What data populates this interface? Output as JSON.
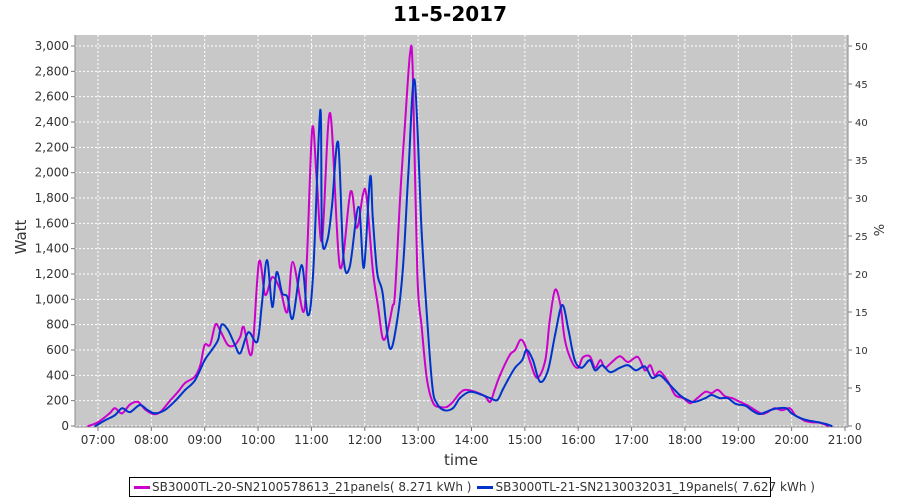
{
  "chart_data": {
    "type": "line",
    "title": "11-5-2017",
    "xlabel": "time",
    "ylabel": "Watt",
    "y2label": "%",
    "ylim": [
      0,
      3000
    ],
    "y2lim": [
      0,
      50
    ],
    "yticks": [
      "0",
      "200",
      "400",
      "600",
      "800",
      "1,000",
      "1,200",
      "1,400",
      "1,600",
      "1,800",
      "2,000",
      "2,200",
      "2,400",
      "2,600",
      "2,800",
      "3,000"
    ],
    "y2ticks": [
      "0",
      "5",
      "10",
      "15",
      "20",
      "25",
      "30",
      "35",
      "40",
      "45",
      "50"
    ],
    "xticks": [
      "07:00",
      "08:00",
      "09:00",
      "10:00",
      "11:00",
      "12:00",
      "13:00",
      "14:00",
      "15:00",
      "16:00",
      "17:00",
      "18:00",
      "19:00",
      "20:00",
      "21:00"
    ],
    "grid": true,
    "legend_position": "bottom",
    "background": "#c8c8c8",
    "series": [
      {
        "name": "SB3000TL-20-SN2100578613_21panels( 8.271 kWh )",
        "color": "#cc00cc",
        "points": [
          [
            "06:49",
            0
          ],
          [
            "07:00",
            30
          ],
          [
            "07:13",
            100
          ],
          [
            "07:19",
            140
          ],
          [
            "07:27",
            100
          ],
          [
            "07:36",
            170
          ],
          [
            "07:45",
            190
          ],
          [
            "07:53",
            130
          ],
          [
            "08:02",
            95
          ],
          [
            "08:10",
            110
          ],
          [
            "08:21",
            200
          ],
          [
            "08:30",
            270
          ],
          [
            "08:38",
            340
          ],
          [
            "08:49",
            390
          ],
          [
            "08:55",
            480
          ],
          [
            "09:00",
            640
          ],
          [
            "09:06",
            640
          ],
          [
            "09:12",
            800
          ],
          [
            "09:17",
            760
          ],
          [
            "09:26",
            640
          ],
          [
            "09:34",
            640
          ],
          [
            "09:40",
            705
          ],
          [
            "09:44",
            780
          ],
          [
            "09:53",
            575
          ],
          [
            "10:01",
            1295
          ],
          [
            "10:08",
            1035
          ],
          [
            "10:16",
            1175
          ],
          [
            "10:25",
            1075
          ],
          [
            "10:33",
            900
          ],
          [
            "10:39",
            1295
          ],
          [
            "10:51",
            900
          ],
          [
            "10:55",
            1335
          ],
          [
            "11:01",
            2350
          ],
          [
            "11:06",
            1940
          ],
          [
            "11:12",
            1470
          ],
          [
            "11:21",
            2470
          ],
          [
            "11:32",
            1255
          ],
          [
            "11:44",
            1850
          ],
          [
            "11:51",
            1565
          ],
          [
            "11:58",
            1830
          ],
          [
            "12:02",
            1810
          ],
          [
            "12:09",
            1230
          ],
          [
            "12:15",
            940
          ],
          [
            "12:20",
            695
          ],
          [
            "12:25",
            730
          ],
          [
            "12:31",
            940
          ],
          [
            "12:34",
            1050
          ],
          [
            "12:40",
            1840
          ],
          [
            "12:45",
            2360
          ],
          [
            "12:51",
            2945
          ],
          [
            "12:54",
            2785
          ],
          [
            "12:59",
            1210
          ],
          [
            "13:04",
            780
          ],
          [
            "13:10",
            365
          ],
          [
            "13:17",
            180
          ],
          [
            "13:25",
            150
          ],
          [
            "13:32",
            150
          ],
          [
            "13:39",
            190
          ],
          [
            "13:47",
            260
          ],
          [
            "13:53",
            285
          ],
          [
            "14:04",
            270
          ],
          [
            "14:15",
            235
          ],
          [
            "14:21",
            190
          ],
          [
            "14:26",
            285
          ],
          [
            "14:32",
            400
          ],
          [
            "14:43",
            560
          ],
          [
            "14:49",
            600
          ],
          [
            "14:55",
            680
          ],
          [
            "15:00",
            640
          ],
          [
            "15:06",
            505
          ],
          [
            "15:14",
            380
          ],
          [
            "15:23",
            520
          ],
          [
            "15:28",
            835
          ],
          [
            "15:34",
            1075
          ],
          [
            "15:40",
            955
          ],
          [
            "15:45",
            680
          ],
          [
            "15:53",
            505
          ],
          [
            "16:00",
            460
          ],
          [
            "16:05",
            540
          ],
          [
            "16:13",
            550
          ],
          [
            "16:19",
            460
          ],
          [
            "16:25",
            520
          ],
          [
            "16:30",
            460
          ],
          [
            "16:38",
            505
          ],
          [
            "16:47",
            550
          ],
          [
            "16:56",
            505
          ],
          [
            "17:07",
            545
          ],
          [
            "17:15",
            440
          ],
          [
            "17:21",
            480
          ],
          [
            "17:26",
            400
          ],
          [
            "17:32",
            430
          ],
          [
            "17:41",
            350
          ],
          [
            "17:49",
            245
          ],
          [
            "17:58",
            220
          ],
          [
            "18:06",
            180
          ],
          [
            "18:14",
            220
          ],
          [
            "18:23",
            270
          ],
          [
            "18:30",
            260
          ],
          [
            "18:37",
            285
          ],
          [
            "18:45",
            235
          ],
          [
            "18:53",
            220
          ],
          [
            "19:02",
            190
          ],
          [
            "19:11",
            160
          ],
          [
            "19:19",
            125
          ],
          [
            "19:27",
            95
          ],
          [
            "19:33",
            110
          ],
          [
            "19:41",
            140
          ],
          [
            "19:49",
            125
          ],
          [
            "19:58",
            140
          ],
          [
            "20:04",
            85
          ],
          [
            "20:09",
            65
          ],
          [
            "20:15",
            40
          ],
          [
            "20:23",
            30
          ],
          [
            "20:32",
            25
          ],
          [
            "20:41",
            0
          ]
        ]
      },
      {
        "name": "SB3000TL-21-SN2130032031_19panels( 7.627 kWh )",
        "color": "#0033cc",
        "points": [
          [
            "06:57",
            0
          ],
          [
            "07:08",
            45
          ],
          [
            "07:19",
            85
          ],
          [
            "07:27",
            140
          ],
          [
            "07:36",
            110
          ],
          [
            "07:47",
            165
          ],
          [
            "07:56",
            125
          ],
          [
            "08:04",
            100
          ],
          [
            "08:15",
            125
          ],
          [
            "08:27",
            200
          ],
          [
            "08:38",
            285
          ],
          [
            "08:49",
            360
          ],
          [
            "09:00",
            520
          ],
          [
            "09:08",
            600
          ],
          [
            "09:15",
            680
          ],
          [
            "09:19",
            800
          ],
          [
            "09:26",
            760
          ],
          [
            "09:34",
            640
          ],
          [
            "09:40",
            575
          ],
          [
            "09:49",
            740
          ],
          [
            "09:59",
            665
          ],
          [
            "10:04",
            940
          ],
          [
            "10:10",
            1310
          ],
          [
            "10:16",
            940
          ],
          [
            "10:21",
            1215
          ],
          [
            "10:27",
            1050
          ],
          [
            "10:33",
            1020
          ],
          [
            "10:39",
            850
          ],
          [
            "10:49",
            1270
          ],
          [
            "10:56",
            875
          ],
          [
            "11:02",
            1210
          ],
          [
            "11:10",
            2495
          ],
          [
            "11:12",
            1490
          ],
          [
            "11:18",
            1470
          ],
          [
            "11:23",
            1730
          ],
          [
            "11:30",
            2240
          ],
          [
            "11:36",
            1335
          ],
          [
            "11:43",
            1255
          ],
          [
            "11:53",
            1730
          ],
          [
            "11:59",
            1250
          ],
          [
            "12:06",
            1965
          ],
          [
            "12:09",
            1640
          ],
          [
            "12:14",
            1210
          ],
          [
            "12:20",
            1050
          ],
          [
            "12:28",
            615
          ],
          [
            "12:36",
            815
          ],
          [
            "12:43",
            1255
          ],
          [
            "12:49",
            2000
          ],
          [
            "12:56",
            2730
          ],
          [
            "13:04",
            1525
          ],
          [
            "13:10",
            860
          ],
          [
            "13:16",
            310
          ],
          [
            "13:21",
            180
          ],
          [
            "13:29",
            125
          ],
          [
            "13:39",
            140
          ],
          [
            "13:47",
            220
          ],
          [
            "13:58",
            270
          ],
          [
            "14:10",
            250
          ],
          [
            "14:21",
            220
          ],
          [
            "14:29",
            205
          ],
          [
            "14:35",
            285
          ],
          [
            "14:41",
            365
          ],
          [
            "14:49",
            460
          ],
          [
            "14:57",
            520
          ],
          [
            "15:02",
            600
          ],
          [
            "15:09",
            520
          ],
          [
            "15:17",
            350
          ],
          [
            "15:26",
            440
          ],
          [
            "15:34",
            720
          ],
          [
            "15:42",
            955
          ],
          [
            "15:49",
            760
          ],
          [
            "15:56",
            520
          ],
          [
            "16:04",
            460
          ],
          [
            "16:13",
            520
          ],
          [
            "16:19",
            440
          ],
          [
            "16:27",
            480
          ],
          [
            "16:36",
            425
          ],
          [
            "16:47",
            460
          ],
          [
            "16:56",
            480
          ],
          [
            "17:05",
            440
          ],
          [
            "17:15",
            470
          ],
          [
            "17:23",
            380
          ],
          [
            "17:32",
            400
          ],
          [
            "17:43",
            325
          ],
          [
            "17:54",
            245
          ],
          [
            "18:03",
            205
          ],
          [
            "18:11",
            190
          ],
          [
            "18:23",
            220
          ],
          [
            "18:30",
            245
          ],
          [
            "18:39",
            220
          ],
          [
            "18:48",
            220
          ],
          [
            "18:57",
            175
          ],
          [
            "19:08",
            160
          ],
          [
            "19:15",
            125
          ],
          [
            "19:24",
            95
          ],
          [
            "19:36",
            125
          ],
          [
            "19:45",
            140
          ],
          [
            "19:54",
            140
          ],
          [
            "20:00",
            100
          ],
          [
            "20:09",
            65
          ],
          [
            "20:18",
            45
          ],
          [
            "20:30",
            30
          ],
          [
            "20:39",
            15
          ],
          [
            "20:45",
            0
          ]
        ]
      }
    ]
  }
}
